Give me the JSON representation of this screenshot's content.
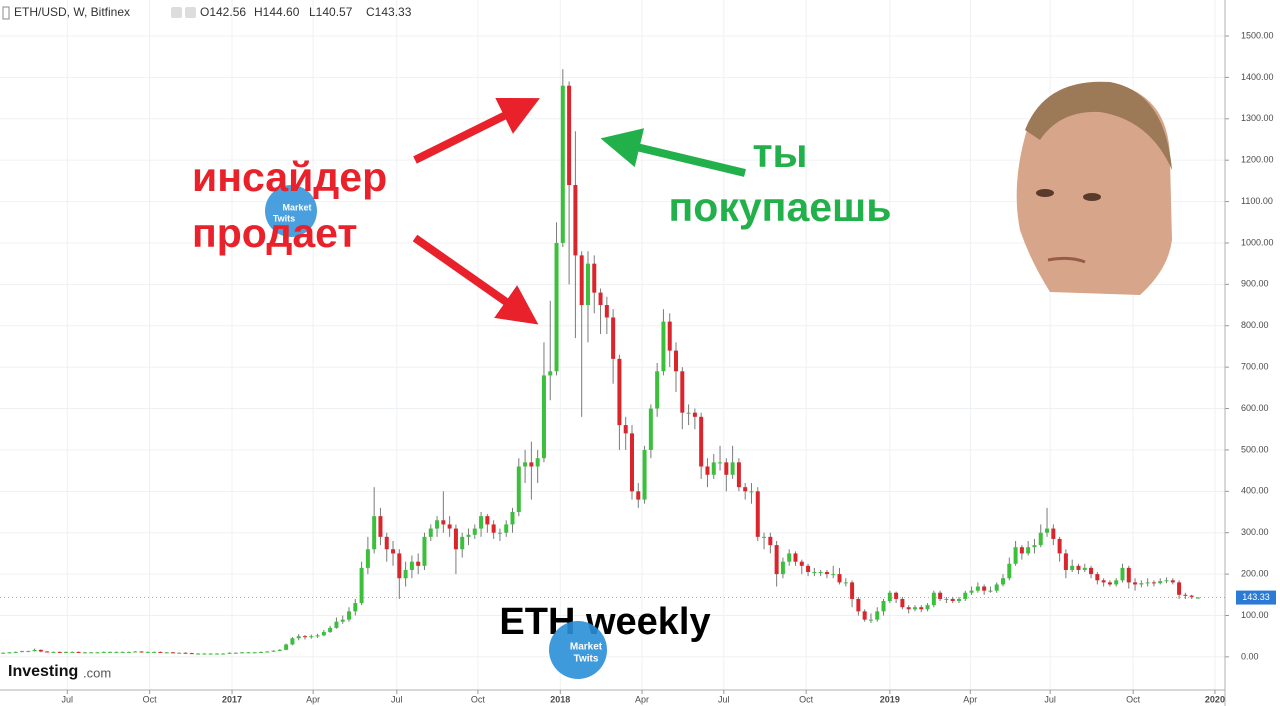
{
  "chart_data": {
    "type": "candlestick",
    "title": "ETH/USD, W, Bitfinex",
    "ohlc_labels": [
      "O142.56",
      "H144.60",
      "L140.57",
      "C143.33"
    ],
    "up_color": "#3cc03c",
    "down_color": "#d9252b",
    "wick_color": "#7a7a7a",
    "grid": true,
    "xlim": [
      -0.5,
      194.3
    ],
    "xticks": [
      {
        "value": 10.2,
        "label": "Jul"
      },
      {
        "value": 23.3,
        "label": "Oct"
      },
      {
        "value": 36.4,
        "label": "2017"
      },
      {
        "value": 49.3,
        "label": "Apr"
      },
      {
        "value": 62.6,
        "label": "Jul"
      },
      {
        "value": 75.5,
        "label": "Oct"
      },
      {
        "value": 88.6,
        "label": "2018"
      },
      {
        "value": 101.6,
        "label": "Apr"
      },
      {
        "value": 114.6,
        "label": "Jul"
      },
      {
        "value": 127.7,
        "label": "Oct"
      },
      {
        "value": 141,
        "label": "2019"
      },
      {
        "value": 153.8,
        "label": "Apr"
      },
      {
        "value": 166.5,
        "label": "Jul"
      },
      {
        "value": 179.7,
        "label": "Oct"
      },
      {
        "value": 192.7,
        "label": "2020"
      }
    ],
    "ylim": [
      -80,
      1587
    ],
    "yticks": [
      {
        "value": 0,
        "label": "0.00"
      },
      {
        "value": 100,
        "label": "100.00"
      },
      {
        "value": 200,
        "label": "200.00"
      },
      {
        "value": 300,
        "label": "300.00"
      },
      {
        "value": 400,
        "label": "400.00"
      },
      {
        "value": 500,
        "label": "500.00"
      },
      {
        "value": 600,
        "label": "600.00"
      },
      {
        "value": 700,
        "label": "700.00"
      },
      {
        "value": 800,
        "label": "800.00"
      },
      {
        "value": 900,
        "label": "900.00"
      },
      {
        "value": 1000,
        "label": "1000.00"
      },
      {
        "value": 1100,
        "label": "1100.00"
      },
      {
        "value": 1200,
        "label": "1200.00"
      },
      {
        "value": 1300,
        "label": "1300.00"
      },
      {
        "value": 1400,
        "label": "1400.00"
      },
      {
        "value": 1500,
        "label": "1500.00"
      }
    ],
    "x": [
      0,
      1,
      2,
      3,
      4,
      5,
      6,
      7,
      8,
      9,
      10,
      11,
      12,
      13,
      14,
      15,
      16,
      17,
      18,
      19,
      20,
      21,
      22,
      23,
      24,
      25,
      26,
      27,
      28,
      29,
      30,
      31,
      32,
      33,
      34,
      35,
      36,
      37,
      38,
      39,
      40,
      41,
      42,
      43,
      44,
      45,
      46,
      47,
      48,
      49,
      50,
      51,
      52,
      53,
      54,
      55,
      56,
      57,
      58,
      59,
      60,
      61,
      62,
      63,
      64,
      65,
      66,
      67,
      68,
      69,
      70,
      71,
      72,
      73,
      74,
      75,
      76,
      77,
      78,
      79,
      80,
      81,
      82,
      83,
      84,
      85,
      86,
      87,
      88,
      89,
      90,
      91,
      92,
      93,
      94,
      95,
      96,
      97,
      98,
      99,
      100,
      101,
      102,
      103,
      104,
      105,
      106,
      107,
      108,
      109,
      110,
      111,
      112,
      113,
      114,
      115,
      116,
      117,
      118,
      119,
      120,
      121,
      122,
      123,
      124,
      125,
      126,
      127,
      128,
      129,
      130,
      131,
      132,
      133,
      134,
      135,
      136,
      137,
      138,
      139,
      140,
      141,
      142,
      143,
      144,
      145,
      146,
      147,
      148,
      149,
      150,
      151,
      152,
      153,
      154,
      155,
      156,
      157,
      158,
      159,
      160,
      161,
      162,
      163,
      164,
      165,
      166,
      167,
      168,
      169,
      170,
      171,
      172,
      173,
      174,
      175,
      176,
      177,
      178,
      179,
      180,
      181,
      182,
      183,
      184,
      185,
      186,
      187,
      188,
      189,
      190
    ],
    "open": [
      10,
      10,
      11,
      12,
      14,
      14,
      17,
      13,
      12,
      12,
      11,
      12,
      12,
      11,
      11,
      11,
      11,
      12,
      12,
      12,
      12,
      12,
      13,
      12,
      12,
      12,
      11,
      11,
      10,
      10,
      9,
      8,
      8,
      8,
      8,
      8,
      8,
      10,
      10,
      11,
      11,
      11,
      12,
      13,
      15,
      17,
      30,
      45,
      50,
      48,
      50,
      52,
      60,
      70,
      85,
      90,
      110,
      130,
      215,
      260,
      340,
      290,
      260,
      250,
      190,
      210,
      230,
      220,
      290,
      310,
      330,
      320,
      310,
      260,
      290,
      295,
      310,
      340,
      320,
      300,
      300,
      320,
      350,
      460,
      470,
      460,
      480,
      680,
      690,
      1000,
      1380,
      1140,
      970,
      850,
      950,
      880,
      850,
      820,
      720,
      560,
      540,
      400,
      380,
      500,
      600,
      690,
      810,
      740,
      690,
      590,
      590,
      580,
      460,
      440,
      470,
      470,
      440,
      470,
      410,
      400,
      400,
      290,
      290,
      270,
      200,
      230,
      250,
      230,
      220,
      205,
      205,
      205,
      200,
      200,
      180,
      180,
      140,
      110,
      90,
      90,
      110,
      135,
      155,
      140,
      120,
      115,
      120,
      115,
      125,
      155,
      140,
      140,
      135,
      140,
      155,
      160,
      170,
      160,
      160,
      175,
      190,
      225,
      265,
      250,
      265,
      270,
      300,
      310,
      285,
      250,
      210,
      220,
      210,
      215,
      200,
      185,
      180,
      175,
      185,
      215,
      180,
      175,
      178,
      180,
      178,
      183,
      185,
      180,
      150,
      148,
      142.56
    ],
    "high": [
      11,
      12,
      13,
      15,
      15,
      20,
      18,
      14,
      13,
      13,
      13,
      13,
      13,
      12,
      12,
      12,
      13,
      13,
      13,
      13,
      13,
      14,
      14,
      13,
      13,
      13,
      12,
      12,
      11,
      11,
      10,
      9,
      9,
      9,
      9,
      9,
      11,
      11,
      12,
      12,
      12,
      13,
      14,
      16,
      19,
      32,
      48,
      55,
      53,
      54,
      56,
      65,
      75,
      95,
      100,
      120,
      140,
      230,
      290,
      410,
      360,
      300,
      280,
      260,
      230,
      245,
      250,
      300,
      320,
      340,
      400,
      340,
      320,
      300,
      310,
      320,
      350,
      345,
      330,
      310,
      330,
      360,
      480,
      500,
      520,
      500,
      760,
      860,
      1050,
      1420,
      1390,
      1270,
      980,
      980,
      970,
      890,
      870,
      840,
      730,
      580,
      560,
      420,
      510,
      610,
      710,
      840,
      830,
      760,
      700,
      610,
      600,
      590,
      480,
      490,
      510,
      480,
      510,
      480,
      420,
      420,
      410,
      300,
      300,
      280,
      240,
      260,
      255,
      235,
      225,
      215,
      210,
      210,
      220,
      215,
      190,
      185,
      145,
      115,
      105,
      120,
      140,
      160,
      158,
      145,
      125,
      125,
      125,
      130,
      160,
      160,
      145,
      145,
      145,
      160,
      170,
      180,
      175,
      170,
      180,
      200,
      240,
      280,
      270,
      280,
      285,
      320,
      360,
      320,
      290,
      260,
      235,
      225,
      225,
      220,
      205,
      190,
      185,
      190,
      225,
      220,
      190,
      185,
      190,
      185,
      190,
      192,
      190,
      185,
      155,
      150,
      144.6
    ],
    "low": [
      9,
      9,
      10,
      11,
      13,
      13,
      11,
      11,
      11,
      10,
      10,
      11,
      10,
      10,
      10,
      10,
      10,
      11,
      11,
      11,
      11,
      11,
      11,
      11,
      11,
      10,
      10,
      9,
      9,
      8,
      7,
      7,
      7,
      7,
      7,
      7,
      7,
      9,
      9,
      10,
      10,
      10,
      11,
      12,
      14,
      16,
      28,
      40,
      42,
      44,
      46,
      50,
      58,
      68,
      80,
      85,
      100,
      125,
      200,
      250,
      270,
      230,
      220,
      140,
      170,
      190,
      200,
      210,
      280,
      290,
      300,
      290,
      200,
      240,
      270,
      285,
      290,
      300,
      285,
      280,
      290,
      300,
      340,
      420,
      380,
      420,
      470,
      620,
      680,
      990,
      900,
      770,
      580,
      760,
      830,
      780,
      780,
      660,
      500,
      500,
      380,
      360,
      370,
      480,
      580,
      680,
      700,
      640,
      550,
      560,
      550,
      430,
      410,
      430,
      450,
      400,
      430,
      400,
      380,
      370,
      280,
      260,
      250,
      170,
      190,
      220,
      220,
      200,
      195,
      195,
      195,
      190,
      190,
      175,
      170,
      120,
      100,
      85,
      82,
      85,
      100,
      130,
      130,
      115,
      105,
      110,
      108,
      110,
      120,
      135,
      130,
      130,
      130,
      135,
      150,
      155,
      150,
      155,
      155,
      170,
      185,
      220,
      235,
      245,
      250,
      265,
      290,
      270,
      230,
      190,
      205,
      200,
      205,
      190,
      175,
      170,
      170,
      170,
      180,
      165,
      160,
      168,
      170,
      170,
      175,
      178,
      175,
      140,
      140,
      140,
      140.57
    ],
    "close": [
      10,
      11,
      12,
      14,
      14,
      17,
      13,
      12,
      12,
      11,
      12,
      12,
      11,
      11,
      11,
      11,
      12,
      12,
      12,
      12,
      12,
      13,
      12,
      12,
      12,
      11,
      11,
      10,
      10,
      9,
      8,
      8,
      8,
      8,
      8,
      8,
      10,
      10,
      11,
      11,
      11,
      12,
      13,
      15,
      17,
      30,
      45,
      50,
      48,
      50,
      52,
      60,
      70,
      85,
      90,
      110,
      130,
      215,
      260,
      340,
      290,
      260,
      250,
      190,
      210,
      230,
      220,
      290,
      310,
      330,
      320,
      310,
      260,
      290,
      295,
      310,
      340,
      320,
      300,
      300,
      320,
      350,
      460,
      470,
      460,
      480,
      680,
      690,
      1000,
      1380,
      1140,
      970,
      850,
      950,
      880,
      850,
      820,
      720,
      560,
      540,
      400,
      380,
      500,
      600,
      690,
      810,
      740,
      690,
      590,
      590,
      580,
      460,
      440,
      470,
      470,
      440,
      470,
      410,
      400,
      400,
      290,
      290,
      270,
      200,
      230,
      250,
      230,
      220,
      205,
      205,
      205,
      200,
      200,
      180,
      180,
      140,
      110,
      90,
      90,
      110,
      135,
      155,
      140,
      120,
      115,
      120,
      115,
      125,
      155,
      140,
      140,
      135,
      140,
      155,
      160,
      170,
      160,
      160,
      175,
      190,
      225,
      265,
      250,
      265,
      270,
      300,
      310,
      285,
      250,
      210,
      220,
      210,
      215,
      200,
      185,
      180,
      175,
      185,
      215,
      180,
      175,
      178,
      180,
      178,
      183,
      185,
      180,
      150,
      148,
      145,
      143.33
    ],
    "annotations": {
      "seller": [
        "инсайдер",
        "продает"
      ],
      "buyer": [
        "ты",
        "покупаешь"
      ],
      "caption": "ETH weekly"
    },
    "watermark": [
      "Investing",
      ".com"
    ],
    "logo": [
      "Market",
      "Twits"
    ]
  }
}
